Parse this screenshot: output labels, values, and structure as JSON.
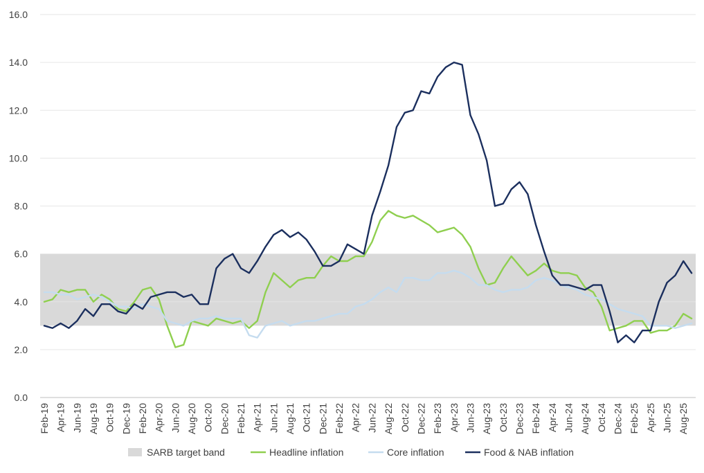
{
  "chart_data": {
    "type": "line",
    "title": "",
    "xlabel": "",
    "ylabel": "",
    "ylim": [
      0,
      16
    ],
    "yticks": [
      "0.0",
      "2.0",
      "4.0",
      "6.0",
      "8.0",
      "10.0",
      "12.0",
      "14.0",
      "16.0"
    ],
    "grid": "horizontal",
    "legend_position": "bottom",
    "x": [
      "Feb-19",
      "Mar-19",
      "Apr-19",
      "May-19",
      "Jun-19",
      "Jul-19",
      "Aug-19",
      "Sep-19",
      "Oct-19",
      "Nov-19",
      "Dec-19",
      "Jan-20",
      "Feb-20",
      "Mar-20",
      "Apr-20",
      "May-20",
      "Jun-20",
      "Jul-20",
      "Aug-20",
      "Sep-20",
      "Oct-20",
      "Nov-20",
      "Dec-20",
      "Jan-21",
      "Feb-21",
      "Mar-21",
      "Apr-21",
      "May-21",
      "Jun-21",
      "Jul-21",
      "Aug-21",
      "Sep-21",
      "Oct-21",
      "Nov-21",
      "Dec-21",
      "Jan-22",
      "Feb-22",
      "Mar-22",
      "Apr-22",
      "May-22",
      "Jun-22",
      "Jul-22",
      "Aug-22",
      "Sep-22",
      "Oct-22",
      "Nov-22",
      "Dec-22",
      "Jan-23",
      "Feb-23",
      "Mar-23",
      "Apr-23",
      "May-23",
      "Jun-23",
      "Jul-23",
      "Aug-23",
      "Sep-23",
      "Oct-23",
      "Nov-23",
      "Dec-23",
      "Jan-24",
      "Feb-24",
      "Mar-24",
      "Apr-24",
      "May-24",
      "Jun-24",
      "Jul-24",
      "Aug-24",
      "Sep-24",
      "Oct-24",
      "Nov-24",
      "Dec-24",
      "Jan-25",
      "Feb-25",
      "Mar-25",
      "Apr-25",
      "May-25",
      "Jun-25",
      "Jul-25",
      "Aug-25",
      "Sep-25"
    ],
    "band": {
      "name": "SARB target band",
      "lower": 3,
      "upper": 6,
      "color": "#d9d9d9"
    },
    "series": [
      {
        "name": "Headline inflation",
        "color": "#8fcf4f",
        "values": [
          4.0,
          4.1,
          4.5,
          4.4,
          4.5,
          4.5,
          4.0,
          4.3,
          4.1,
          3.7,
          3.6,
          4.0,
          4.5,
          4.6,
          4.1,
          3.0,
          2.1,
          2.2,
          3.2,
          3.1,
          3.0,
          3.3,
          3.2,
          3.1,
          3.2,
          2.9,
          3.2,
          4.4,
          5.2,
          4.9,
          4.6,
          4.9,
          5.0,
          5.0,
          5.5,
          5.9,
          5.7,
          5.7,
          5.9,
          5.9,
          6.5,
          7.4,
          7.8,
          7.6,
          7.5,
          7.6,
          7.4,
          7.2,
          6.9,
          7.0,
          7.1,
          6.8,
          6.3,
          5.4,
          4.7,
          4.8,
          5.4,
          5.9,
          5.5,
          5.1,
          5.3,
          5.6,
          5.3,
          5.2,
          5.2,
          5.1,
          4.6,
          4.4,
          3.8,
          2.8,
          2.9,
          3.0,
          3.2,
          3.2,
          2.7,
          2.8,
          2.8,
          3.0,
          3.5,
          3.3
        ]
      },
      {
        "name": "Core inflation",
        "color": "#c5dcef",
        "values": [
          4.4,
          4.4,
          4.3,
          4.3,
          4.1,
          4.2,
          4.3,
          4.2,
          4.0,
          3.8,
          3.8,
          3.7,
          3.9,
          3.8,
          3.7,
          3.2,
          3.1,
          3.0,
          3.2,
          3.3,
          3.3,
          3.4,
          3.3,
          3.3,
          3.3,
          2.6,
          2.5,
          3.0,
          3.1,
          3.2,
          3.0,
          3.1,
          3.2,
          3.2,
          3.3,
          3.4,
          3.5,
          3.5,
          3.8,
          3.9,
          4.1,
          4.4,
          4.6,
          4.4,
          5.0,
          5.0,
          4.9,
          4.9,
          5.2,
          5.2,
          5.3,
          5.2,
          5.0,
          4.7,
          4.7,
          4.5,
          4.4,
          4.5,
          4.5,
          4.6,
          4.9,
          5.0,
          4.9,
          4.7,
          4.6,
          4.5,
          4.3,
          4.2,
          4.1,
          3.9,
          3.7,
          3.6,
          3.5,
          3.4,
          3.0,
          3.0,
          3.0,
          2.9,
          3.0,
          3.1
        ]
      },
      {
        "name": "Food & NAB inflation",
        "color": "#1b2f5e",
        "values": [
          3.0,
          2.9,
          3.1,
          2.9,
          3.2,
          3.7,
          3.4,
          3.9,
          3.9,
          3.6,
          3.5,
          3.9,
          3.7,
          4.2,
          4.3,
          4.4,
          4.4,
          4.2,
          4.3,
          3.9,
          3.9,
          5.4,
          5.8,
          6.0,
          5.4,
          5.2,
          5.7,
          6.3,
          6.8,
          7.0,
          6.7,
          6.9,
          6.6,
          6.1,
          5.5,
          5.5,
          5.7,
          6.4,
          6.2,
          6.0,
          7.6,
          8.6,
          9.7,
          11.3,
          11.9,
          12.0,
          12.8,
          12.7,
          13.4,
          13.8,
          14.0,
          13.9,
          11.8,
          11.0,
          9.9,
          8.0,
          8.1,
          8.7,
          9.0,
          8.5,
          7.2,
          6.1,
          5.1,
          4.7,
          4.7,
          4.6,
          4.5,
          4.7,
          4.7,
          3.6,
          2.3,
          2.6,
          2.3,
          2.8,
          2.8,
          4.0,
          4.8,
          5.1,
          5.7,
          5.2
        ]
      }
    ]
  },
  "legend": {
    "items": [
      {
        "label": "SARB target band",
        "color": "#d9d9d9",
        "kind": "box"
      },
      {
        "label": "Headline inflation",
        "color": "#8fcf4f",
        "kind": "line"
      },
      {
        "label": "Core inflation",
        "color": "#c5dcef",
        "kind": "line"
      },
      {
        "label": "Food & NAB inflation",
        "color": "#1b2f5e",
        "kind": "line"
      }
    ]
  }
}
